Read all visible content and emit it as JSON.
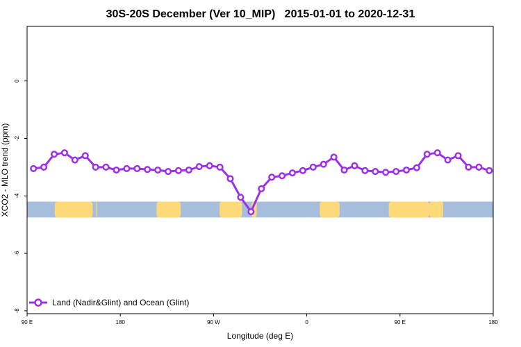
{
  "chart_data": {
    "type": "line",
    "title": "30S-20S December (Ver 10_MIP)   2015-01-01 to 2020-12-31",
    "xlabel": "Longitude (deg E)",
    "ylabel": "XCO2 - MLO trend (ppm)",
    "xlim": [
      -90,
      180
    ],
    "ylim": [
      -8.1,
      1.9
    ],
    "x_ticks": [
      -90,
      -36,
      18,
      72,
      126,
      180
    ],
    "x_tick_labels": [
      "90 E",
      "180",
      "90 W",
      "0",
      "90 E",
      "180"
    ],
    "y_ticks": [
      -8,
      -6,
      -4,
      -2,
      0
    ],
    "y_tick_labels": [
      "-8",
      "-6",
      "-4",
      "-2",
      "0"
    ],
    "grid": false,
    "legend_position": "bottom-left",
    "series": [
      {
        "name": "Land (Nadir&Glint) and Ocean (Glint)",
        "color": "#9b30e6",
        "x": [
          -86.3,
          -80.3,
          -74.3,
          -68.3,
          -62.3,
          -56.3,
          -50.3,
          -44.3,
          -38.3,
          -32.3,
          -26.3,
          -20.3,
          -14.3,
          -8.3,
          -2.3,
          3.7,
          9.7,
          15.7,
          21.7,
          27.7,
          33.7,
          39.7,
          45.7,
          51.7,
          57.7,
          63.7,
          69.7,
          75.7,
          81.7,
          87.7,
          93.7,
          99.7,
          105.7,
          111.7,
          117.7,
          123.7,
          129.7,
          135.7,
          141.7,
          147.7,
          153.7,
          159.7,
          165.7,
          171.7,
          177.7
        ],
        "y": [
          -3.05,
          -3.0,
          -2.55,
          -2.5,
          -2.75,
          -2.6,
          -3.0,
          -3.0,
          -3.1,
          -3.05,
          -3.05,
          -3.08,
          -3.1,
          -3.15,
          -3.12,
          -3.1,
          -2.98,
          -2.95,
          -3.0,
          -3.4,
          -4.05,
          -4.55,
          -3.75,
          -3.35,
          -3.3,
          -3.2,
          -3.12,
          -3.0,
          -2.9,
          -2.65,
          -3.1,
          -2.95,
          -3.12,
          -3.15,
          -3.18,
          -3.15,
          -3.1,
          -3.02,
          -2.55,
          -2.5,
          -2.75,
          -2.6,
          -3.0,
          -3.0,
          -3.12
        ]
      }
    ],
    "background_band": {
      "y_range": [
        -4.75,
        -4.2
      ],
      "ocean_color": "#a6bddb",
      "land_color": "#fdd97a",
      "land_x_ranges": [
        [
          -74,
          -52
        ],
        [
          -50,
          -49.5
        ],
        [
          -15,
          -1
        ],
        [
          21.5,
          34.5
        ],
        [
          40,
          43
        ],
        [
          79.5,
          91
        ],
        [
          119.5,
          143
        ],
        [
          143,
          150
        ],
        [
          149,
          151
        ]
      ]
    }
  }
}
